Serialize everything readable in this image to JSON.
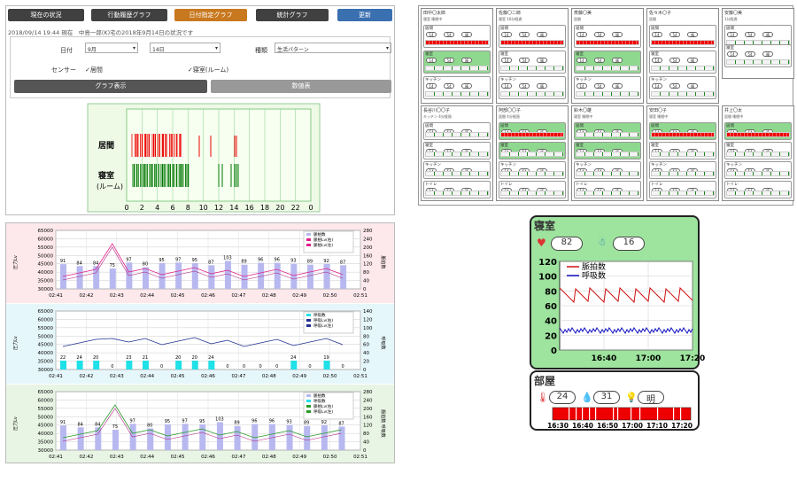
{
  "tabs": [
    {
      "label": "現在の状況",
      "color": "#404040"
    },
    {
      "label": "行動履歴グラフ",
      "color": "#404040"
    },
    {
      "label": "日付指定グラフ",
      "color": "#c8781e"
    },
    {
      "label": "統計グラフ",
      "color": "#404040"
    },
    {
      "label": "更新",
      "color": "#3a6fb0"
    }
  ],
  "status_line": "2018/09/14 19:44 現在　中島一郎(K)宅の2018年9月14日の状況です",
  "form": {
    "date_label": "日付",
    "month_value": "9月",
    "day_value": "14日",
    "type_label": "種類",
    "type_value": "生活パターン",
    "sensor_label": "センサー",
    "check1": "✓居間",
    "check2": "✓寝室(ルーム)",
    "graph_btn": "グラフ表示",
    "num_btn": "数値表"
  },
  "activity_chart": {
    "row1": "居間",
    "row2a": "寝室",
    "row2b": "(ルーム)",
    "xticks": [
      "0",
      "2",
      "4",
      "6",
      "8",
      "10",
      "12",
      "14",
      "16",
      "18",
      "20",
      "22",
      "0"
    ]
  },
  "left_charts": {
    "times": [
      "02:41",
      "02:42",
      "02:43",
      "02:44",
      "02:45",
      "02:46",
      "02:47",
      "02:48",
      "02:49",
      "02:50",
      "02:51"
    ],
    "c1": {
      "yl": [
        "65000",
        "60000",
        "55000",
        "50000",
        "45000",
        "40000",
        "35000",
        "30000"
      ],
      "yr": [
        "280",
        "240",
        "200",
        "160",
        "120",
        "80",
        "40",
        "0"
      ],
      "ylab": "圧力Lv",
      "rlab": "脈拍数",
      "legend": [
        "脈拍数",
        "脈拍Lv(右)",
        "脈拍Lv(左)"
      ],
      "labels": [
        "91",
        "84",
        "84",
        "75",
        "97",
        "80",
        "95",
        "97",
        "95",
        "87",
        "103",
        "89",
        "96",
        "96",
        "93",
        "89",
        "92",
        "87"
      ]
    },
    "c2": {
      "yl": [
        "65000",
        "60000",
        "55000",
        "50000",
        "45000",
        "40000",
        "35000",
        "30000"
      ],
      "yr": [
        "140",
        "120",
        "100",
        "80",
        "60",
        "40",
        "20",
        "0"
      ],
      "ylab": "圧力Lv",
      "rlab": "呼吸数",
      "legend": [
        "呼吸数",
        "呼吸Lv(右)",
        "呼吸Lv(左)"
      ],
      "labels": [
        "22",
        "24",
        "20",
        "0",
        "23",
        "21",
        "0",
        "20",
        "20",
        "24",
        "0",
        "0",
        "0",
        "0",
        "24",
        "0",
        "19",
        "0"
      ]
    },
    "c3": {
      "yl": [
        "65000",
        "60000",
        "55000",
        "50000",
        "45000",
        "40000",
        "35000",
        "30000"
      ],
      "yr": [
        "280",
        "240",
        "200",
        "160",
        "120",
        "80",
        "40",
        "0"
      ],
      "ylab": "圧力Lv",
      "rlab": "脈拍数 呼吸数",
      "legend": [
        "脈拍数",
        "呼吸数",
        "脈拍Lv(右)",
        "呼吸Lv(左)"
      ],
      "labels": [
        "91",
        "84",
        "84",
        "75",
        "97",
        "80",
        "95",
        "97",
        "95",
        "103",
        "89",
        "96",
        "96",
        "93",
        "89",
        "92",
        "87"
      ]
    }
  },
  "cards": [
    {
      "name": "田中〇太郎",
      "stat": "寝室 睡眠中"
    },
    {
      "name": "佐藤〇二郎",
      "stat": "寝室 16分経過"
    },
    {
      "name": "斎藤〇美",
      "stat": "居間"
    },
    {
      "name": "佐々木〇子",
      "stat": "居間"
    },
    {
      "name": "安藤〇美",
      "stat": "1分経過"
    },
    {
      "name": "長谷川〇〇子",
      "stat": "キッチン 4分経過"
    },
    {
      "name": "阿部〇〇子",
      "stat": "居間 4分経過"
    },
    {
      "name": "鈴木〇雄",
      "stat": "寝室 睡眠中"
    },
    {
      "name": "安田〇子",
      "stat": "寝室 睡眠中"
    },
    {
      "name": "井上〇太",
      "stat": "居間 睡眠中"
    }
  ],
  "sections": [
    "居間",
    "寝室",
    "キッチン",
    "トイレ"
  ],
  "pills": [
    "14",
    "54",
    "晴"
  ],
  "detail": {
    "title": "寝室",
    "heart": "82",
    "breath": "16",
    "legend1": "脈拍数",
    "legend2": "呼吸数",
    "yticks": [
      "120",
      "100",
      "80",
      "60",
      "40",
      "20",
      "0"
    ],
    "xticks": [
      "16:40",
      "17:00",
      "17:20"
    ],
    "room_title": "部屋",
    "temp": "24",
    "humid": "31",
    "light": "明",
    "room_xticks": [
      "16:30",
      "16:40",
      "16:50",
      "17:00",
      "17:10",
      "17:20"
    ]
  }
}
